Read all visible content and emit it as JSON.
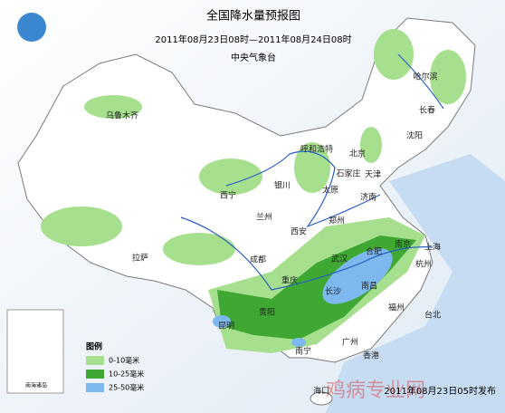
{
  "title": "全国降水量预报图",
  "subtitle": "2011年08月23日08时—2011年08月24日08时",
  "issuer": "中央气象台",
  "cities": [
    "乌鲁木齐",
    "哈尔滨",
    "长春",
    "沈阳",
    "呼和浩特",
    "北京",
    "天津",
    "石家庄",
    "太原",
    "银川",
    "西宁",
    "兰州",
    "济南",
    "郑州",
    "西安",
    "拉萨",
    "成都",
    "重庆",
    "武汉",
    "合肥",
    "南京",
    "上海",
    "杭州",
    "长沙",
    "南昌",
    "贵阳",
    "昆明",
    "福州",
    "台北",
    "广州",
    "南宁",
    "香港",
    "海口"
  ],
  "legend": {
    "title": "图例",
    "items": [
      {
        "label": "0-10毫米",
        "color": "#a6e08e"
      },
      {
        "label": "10-25毫米",
        "color": "#3ea832"
      },
      {
        "label": "25-50毫米",
        "color": "#7db8ee"
      }
    ]
  },
  "inset_label": "南海诸岛",
  "footer": "2011年08月23日05时发布",
  "watermark": "鸡病专业网"
}
